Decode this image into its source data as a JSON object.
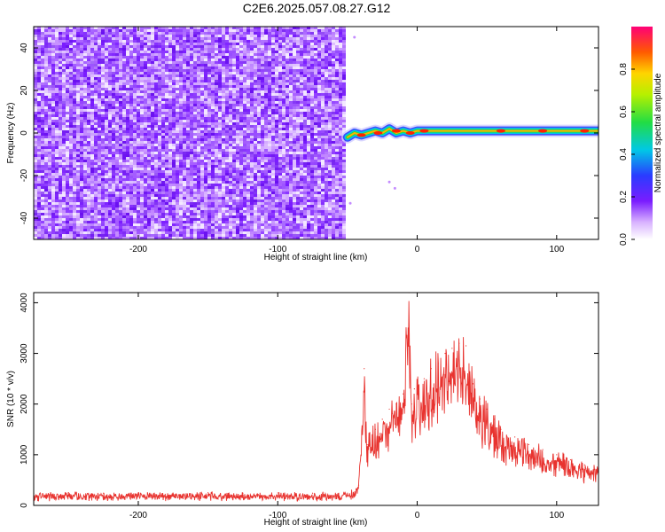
{
  "title": "C2E6.2025.057.08.27.G12",
  "chart_data": [
    {
      "type": "heatmap",
      "xlabel": "Height of straight line (km)",
      "ylabel": "Frequency (Hz)",
      "xlim": [
        -275,
        130
      ],
      "ylim": [
        -50,
        50
      ],
      "xticks": [
        -200,
        -100,
        0,
        100
      ],
      "yticks": [
        -40,
        -20,
        0,
        20,
        40
      ],
      "noise_region_x": [
        -275,
        -52
      ],
      "signal_ridge": {
        "x": [
          -50,
          -45,
          -40,
          -35,
          -30,
          -25,
          -20,
          -15,
          -10,
          -5,
          0,
          10,
          20,
          30,
          40,
          50,
          60,
          70,
          80,
          90,
          100,
          110,
          120,
          130
        ],
        "frequency_hz": [
          -2,
          0,
          -1,
          0,
          1,
          0,
          2,
          0,
          1,
          0,
          1,
          1,
          1,
          1,
          1,
          1,
          1,
          1,
          1,
          1,
          1,
          1,
          1,
          1
        ]
      },
      "colorbar": {
        "label": "Normalized spectral amplitude",
        "range": [
          0,
          1
        ],
        "ticks": [
          "0.0",
          "0.2",
          "0.4",
          "0.6",
          "0.8"
        ]
      }
    },
    {
      "type": "line",
      "xlabel": "Height of straight line (km)",
      "ylabel": "SNR (10 * v/v)",
      "xlim": [
        -275,
        130
      ],
      "ylim": [
        0,
        4200
      ],
      "xticks": [
        -200,
        -100,
        0,
        100
      ],
      "yticks": [
        0,
        1000,
        2000,
        3000,
        4000
      ],
      "series": [
        {
          "color": "#e8332f",
          "x": [
            -275,
            -250,
            -225,
            -200,
            -175,
            -150,
            -125,
            -100,
            -75,
            -50,
            -42,
            -38,
            -36,
            -34,
            -30,
            -25,
            -20,
            -15,
            -10,
            -6,
            -4,
            -2,
            0,
            5,
            10,
            15,
            20,
            25,
            30,
            35,
            40,
            45,
            50,
            55,
            60,
            70,
            80,
            90,
            100,
            110,
            120,
            130
          ],
          "y": [
            240,
            250,
            240,
            245,
            240,
            250,
            240,
            245,
            240,
            240,
            400,
            2700,
            1200,
            1400,
            1500,
            1700,
            1900,
            2000,
            2200,
            4200,
            2000,
            2300,
            2400,
            2500,
            2700,
            2800,
            3000,
            3100,
            3200,
            3150,
            2400,
            2100,
            1900,
            1700,
            1500,
            1350,
            1200,
            1100,
            1000,
            900,
            800,
            750
          ]
        }
      ]
    }
  ]
}
